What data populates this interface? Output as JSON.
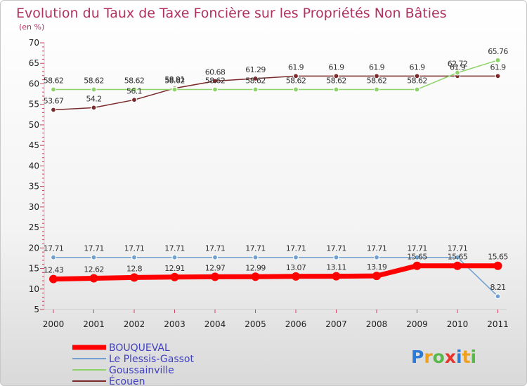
{
  "chart_data": {
    "type": "line",
    "title": "Evolution du Taux de Taxe Foncière sur les Propriétés Non Bâties",
    "subtitle": "(en %)",
    "xlabel": "",
    "ylabel": "(en %)",
    "x": [
      "2000",
      "2001",
      "2002",
      "2003",
      "2004",
      "2005",
      "2006",
      "2007",
      "2008",
      "2009",
      "2010",
      "2011"
    ],
    "ylim": [
      5,
      70
    ],
    "yticks": [
      5,
      10,
      15,
      20,
      25,
      30,
      35,
      40,
      45,
      50,
      55,
      60,
      65,
      70
    ],
    "grid": false,
    "legend_position": "bottom-left",
    "series": [
      {
        "name": "BOUQUEVAL",
        "color": "#ff0000",
        "values": [
          12.43,
          12.62,
          12.8,
          12.91,
          12.97,
          12.99,
          13.07,
          13.11,
          13.19,
          15.65,
          15.65,
          15.65
        ],
        "labels": [
          "12.43",
          "12.62",
          "12.8",
          "12.91",
          "12.97",
          "12.99",
          "13.07",
          "13.11",
          "13.19",
          "15.65",
          "15.65",
          "15.65"
        ]
      },
      {
        "name": "Le Plessis-Gassot",
        "color": "#6fa0cf",
        "values": [
          17.71,
          17.71,
          17.71,
          17.71,
          17.71,
          17.71,
          17.71,
          17.71,
          17.71,
          17.71,
          17.71,
          8.21
        ],
        "labels": [
          "17.71",
          "17.71",
          "17.71",
          "17.71",
          "17.71",
          "17.71",
          "17.71",
          "17.71",
          "17.71",
          "17.71",
          "17.71",
          "8.21"
        ]
      },
      {
        "name": "Goussainville",
        "color": "#8ed36a",
        "values": [
          58.62,
          58.62,
          58.62,
          58.62,
          58.62,
          58.62,
          58.62,
          58.62,
          58.62,
          58.62,
          62.72,
          65.76
        ],
        "labels": [
          "58.62",
          "58.62",
          "58.62",
          "58.62",
          "58.62",
          "58.62",
          "58.62",
          "58.62",
          "58.62",
          "58.62",
          "62.72",
          "65.76"
        ]
      },
      {
        "name": "Écouen",
        "color": "#7a2a2a",
        "values": [
          53.67,
          54.2,
          56.1,
          58.91,
          60.68,
          61.29,
          61.9,
          61.9,
          61.9,
          61.9,
          61.9,
          61.9
        ],
        "labels": [
          "53.67",
          "54.2",
          "56.1",
          "58.91",
          "60.68",
          "61.29",
          "61.9",
          "61.9",
          "61.9",
          "61.9",
          "61.9",
          "61.9"
        ]
      }
    ]
  },
  "legend": [
    {
      "label": "BOUQUEVAL"
    },
    {
      "label": "Le Plessis-Gassot"
    },
    {
      "label": "Goussainville"
    },
    {
      "label": "Écouen"
    }
  ],
  "brand": {
    "letters": [
      "P",
      "r",
      "o",
      "x",
      "i",
      "t",
      "i"
    ],
    "colors": [
      "#2a7bd8",
      "#f0a01e",
      "#58b848",
      "#e8342a",
      "#2a7bd8",
      "#f0a01e",
      "#58b848"
    ]
  }
}
